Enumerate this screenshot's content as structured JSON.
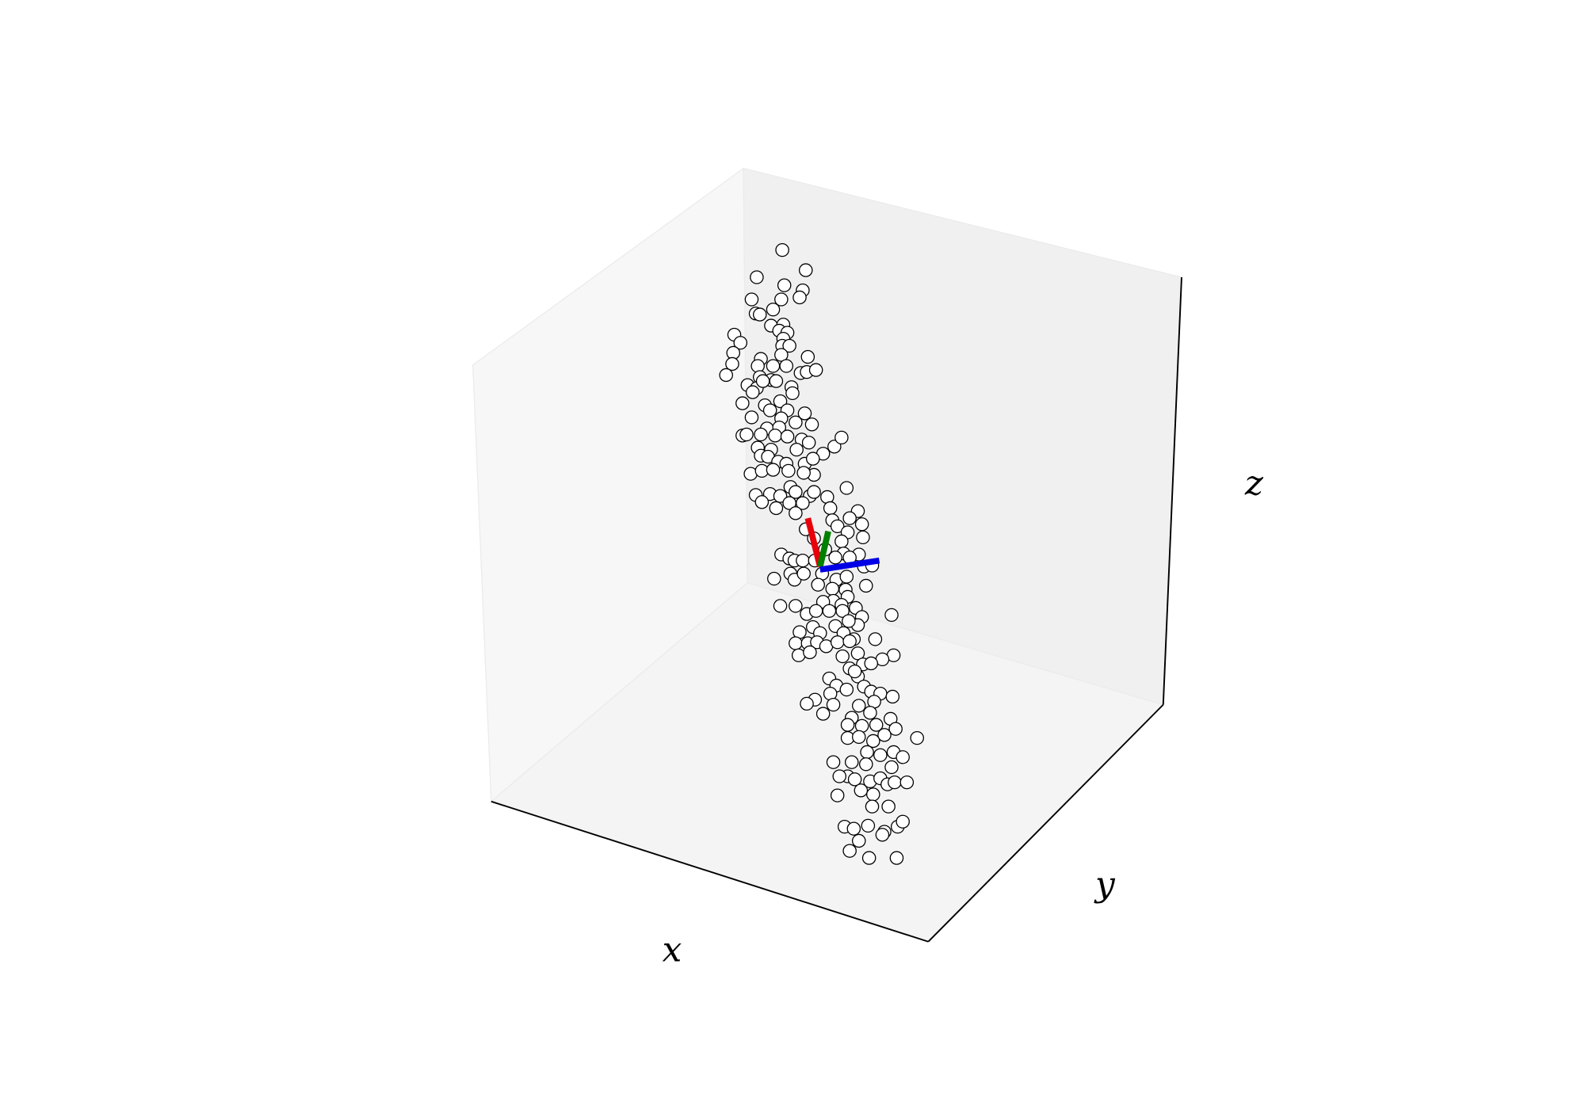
{
  "chart_data": {
    "type": "scatter3d",
    "xlabel": "x",
    "ylabel": "y",
    "zlabel": "z",
    "xlim": [
      0,
      1552
    ],
    "ylim": [
      1100,
      0
    ],
    "marker_face": "#ffffff",
    "marker_edge": "#000000",
    "x": [
      766,
      741,
      789,
      768,
      786,
      736,
      765,
      783,
      740,
      744,
      757,
      755,
      767,
      763,
      771,
      719,
      725,
      767,
      766,
      773,
      718,
      745,
      765,
      791,
      717,
      742,
      757,
      770,
      784,
      790,
      799,
      711,
      744,
      755,
      732,
      741,
      747,
      760,
      775,
      737,
      776,
      727,
      749,
      764,
      754,
      771,
      788,
      736,
      765,
      779,
      795,
      751,
      763,
      727,
      731,
      745,
      759,
      771,
      785,
      792,
      817,
      824,
      742,
      755,
      780,
      806,
      745,
      752,
      762,
      788,
      770,
      796,
      735,
      746,
      757,
      772,
      797,
      787,
      774,
      740,
      754,
      764,
      779,
      793,
      797,
      810,
      829,
      746,
      773,
      786,
      813,
      760,
      779,
      840,
      832,
      844,
      815,
      820,
      789,
      830,
      797,
      824,
      845,
      808,
      826,
      841,
      765,
      773,
      778,
      786,
      798,
      818,
      832,
      846,
      854,
      758,
      774,
      778,
      787,
      805,
      819,
      829,
      801,
      815,
      828,
      848,
      830,
      816,
      806,
      824,
      764,
      779,
      790,
      799,
      812,
      825,
      838,
      844,
      840,
      873,
      783,
      796,
      803,
      818,
      831,
      826,
      836,
      779,
      791,
      800,
      809,
      820,
      832,
      782,
      793,
      825,
      840,
      857,
      875,
      845,
      864,
      853,
      832,
      812,
      840,
      837,
      819,
      829,
      846,
      853,
      862,
      874,
      813,
      798,
      790,
      816,
      841,
      856,
      852,
      806,
      834,
      872,
      830,
      844,
      858,
      877,
      898,
      830,
      841,
      855,
      866,
      849,
      862,
      875,
      884,
      816,
      834,
      848,
      873,
      830,
      822,
      837,
      852,
      862,
      869,
      876,
      888,
      843,
      855,
      820,
      854,
      870,
      827,
      836,
      850,
      866,
      879,
      884,
      841,
      864,
      832,
      851,
      878
    ],
    "y": [
      248,
      275,
      268,
      283,
      288,
      297,
      297,
      295,
      311,
      312,
      307,
      323,
      322,
      328,
      330,
      332,
      340,
      336,
      343,
      343,
      350,
      356,
      352,
      354,
      361,
      363,
      363,
      363,
      370,
      369,
      367,
      372,
      374,
      377,
      382,
      385,
      378,
      378,
      384,
      389,
      390,
      400,
      402,
      398,
      407,
      407,
      410,
      414,
      415,
      419,
      421,
      425,
      424,
      432,
      431,
      431,
      432,
      433,
      436,
      439,
      443,
      434,
      444,
      446,
      446,
      450,
      452,
      453,
      458,
      460,
      460,
      455,
      470,
      467,
      466,
      467,
      471,
      469,
      483,
      491,
      490,
      492,
      488,
      492,
      488,
      493,
      484,
      498,
      499,
      499,
      504,
      504,
      509,
      507,
      514,
      520,
      516,
      522,
      525,
      528,
      534,
      537,
      533,
      545,
      549,
      550,
      550,
      554,
      556,
      556,
      556,
      553,
      553,
      562,
      561,
      574,
      569,
      575,
      569,
      569,
      575,
      572,
      580,
      584,
      585,
      581,
      592,
      596,
      597,
      600,
      601,
      601,
      609,
      606,
      606,
      606,
      603,
      612,
      620,
      610,
      627,
      622,
      628,
      621,
      616,
      628,
      634,
      638,
      638,
      637,
      641,
      637,
      636,
      650,
      647,
      651,
      648,
      634,
      650,
      659,
      654,
      658,
      663,
      673,
      671,
      666,
      680,
      684,
      681,
      686,
      688,
      691,
      688,
      694,
      698,
      699,
      700,
      696,
      707,
      708,
      712,
      713,
      719,
      720,
      719,
      723,
      732,
      732,
      731,
      735,
      729,
      746,
      749,
      746,
      751,
      756,
      756,
      758,
      761,
      770,
      770,
      773,
      775,
      772,
      778,
      776,
      776,
      784,
      788,
      789,
      800,
      800,
      820,
      822,
      819,
      825,
      820,
      815,
      834,
      828,
      844,
      851,
      851
    ],
    "vectors": [
      {
        "color": "#e8000b",
        "x": [
          803,
          791
        ],
        "y": [
          562,
          514
        ]
      },
      {
        "color": "#008000",
        "x": [
          803,
          811
        ],
        "y": [
          562,
          527
        ]
      },
      {
        "color": "#0000e6",
        "x": [
          803,
          861
        ],
        "y": [
          565,
          556
        ]
      }
    ]
  }
}
